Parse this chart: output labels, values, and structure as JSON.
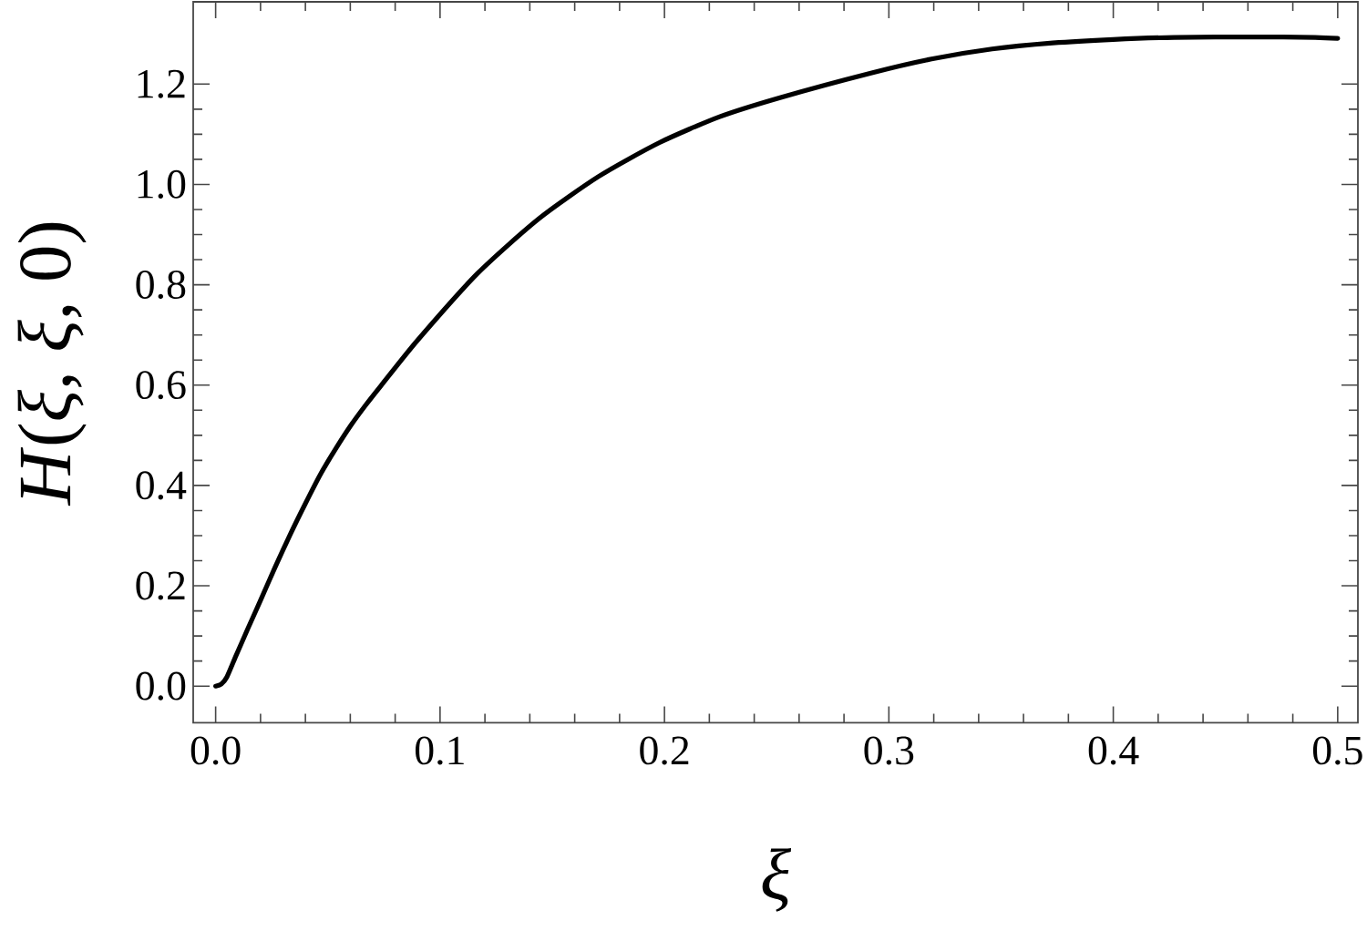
{
  "chart_data": {
    "type": "line",
    "xlabel": "ξ",
    "ylabel": "*H*(*ξ*, *ξ*, 0)",
    "x": [
      0,
      0.0025,
      0.005,
      0.0091,
      0.0145,
      0.0198,
      0.0265,
      0.0333,
      0.04,
      0.0468,
      0.0535,
      0.0603,
      0.067,
      0.0737,
      0.0899,
      0.1168,
      0.1438,
      0.1707,
      0.1976,
      0.2246,
      0.2515,
      0.292,
      0.319,
      0.346,
      0.373,
      0.4,
      0.427,
      0.464,
      0.49,
      0.5
    ],
    "series": [
      {
        "color": "#000000",
        "values": [
          0,
          0.004,
          0.018,
          0.061,
          0.116,
          0.169,
          0.237,
          0.303,
          0.364,
          0.423,
          0.473,
          0.52,
          0.561,
          0.599,
          0.689,
          0.823,
          0.931,
          1.016,
          1.083,
          1.135,
          1.173,
          1.222,
          1.25,
          1.27,
          1.282,
          1.289,
          1.293,
          1.294,
          1.293,
          1.291
        ]
      }
    ],
    "xlim": [
      -0.01,
      0.509
    ],
    "ylim": [
      -0.073,
      1.364
    ],
    "xticks": [
      {
        "value": 0,
        "label": "0.0"
      },
      0.1,
      0.2,
      0.3,
      0.4,
      0.5
    ],
    "yticks": [
      {
        "value": 0,
        "label": "0.0"
      },
      0.2,
      0.4,
      0.6,
      0.8,
      {
        "value": 1,
        "label": "1.0"
      },
      1.2
    ]
  }
}
